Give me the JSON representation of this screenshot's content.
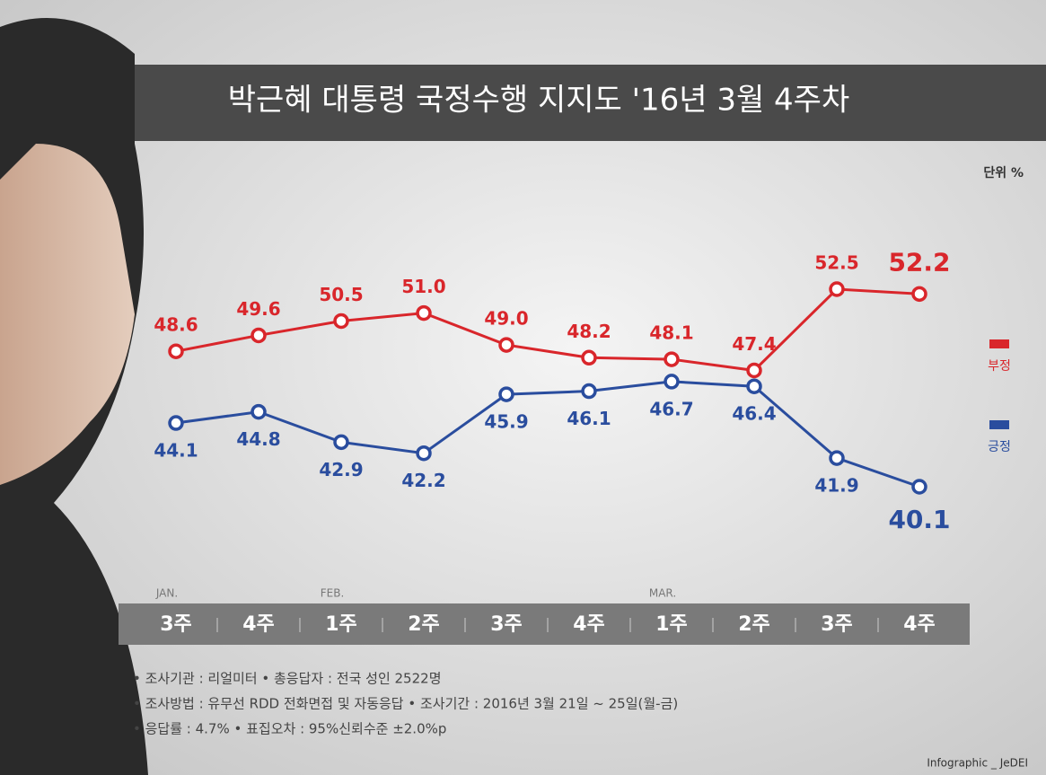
{
  "chart_data": {
    "type": "line",
    "title": "박근혜 대통령 국정수행 지지도 '16년 3월 4주차",
    "unit": "단위 %",
    "categories": [
      "3주",
      "4주",
      "1주",
      "2주",
      "3주",
      "4주",
      "1주",
      "2주",
      "3주",
      "4주"
    ],
    "month_labels": [
      "JAN.",
      null,
      "FEB.",
      null,
      null,
      null,
      "MAR.",
      null,
      null,
      null
    ],
    "series": [
      {
        "name": "부정",
        "color": "#d9262b",
        "values": [
          48.6,
          49.6,
          50.5,
          51.0,
          49.0,
          48.2,
          48.1,
          47.4,
          52.5,
          52.2
        ],
        "value_labels": [
          "48.6",
          "49.6",
          "50.5",
          "51.0",
          "49.0",
          "48.2",
          "48.1",
          "47.4",
          "52.5",
          "52.2"
        ]
      },
      {
        "name": "긍정",
        "color": "#2a4d9e",
        "values": [
          44.1,
          44.8,
          42.9,
          42.2,
          45.9,
          46.1,
          46.7,
          46.4,
          41.9,
          40.1
        ],
        "value_labels": [
          "44.1",
          "44.8",
          "42.9",
          "42.2",
          "45.9",
          "46.1",
          "46.7",
          "46.4",
          "41.9",
          "40.1"
        ]
      }
    ],
    "notes": [
      "• 조사기관 : 리얼미터   • 총응답자 : 전국 성인 2522명",
      "• 조사방법 : 유무선 RDD 전화면접 및 자동응답  • 조사기간 : 2016년 3월 21일 ~ 25일(월-금)",
      "• 응답률 : 4.7%   • 표집오차 : 95%신뢰수준 ±2.0%p"
    ],
    "credit": "Infographic _ JeDEI"
  }
}
